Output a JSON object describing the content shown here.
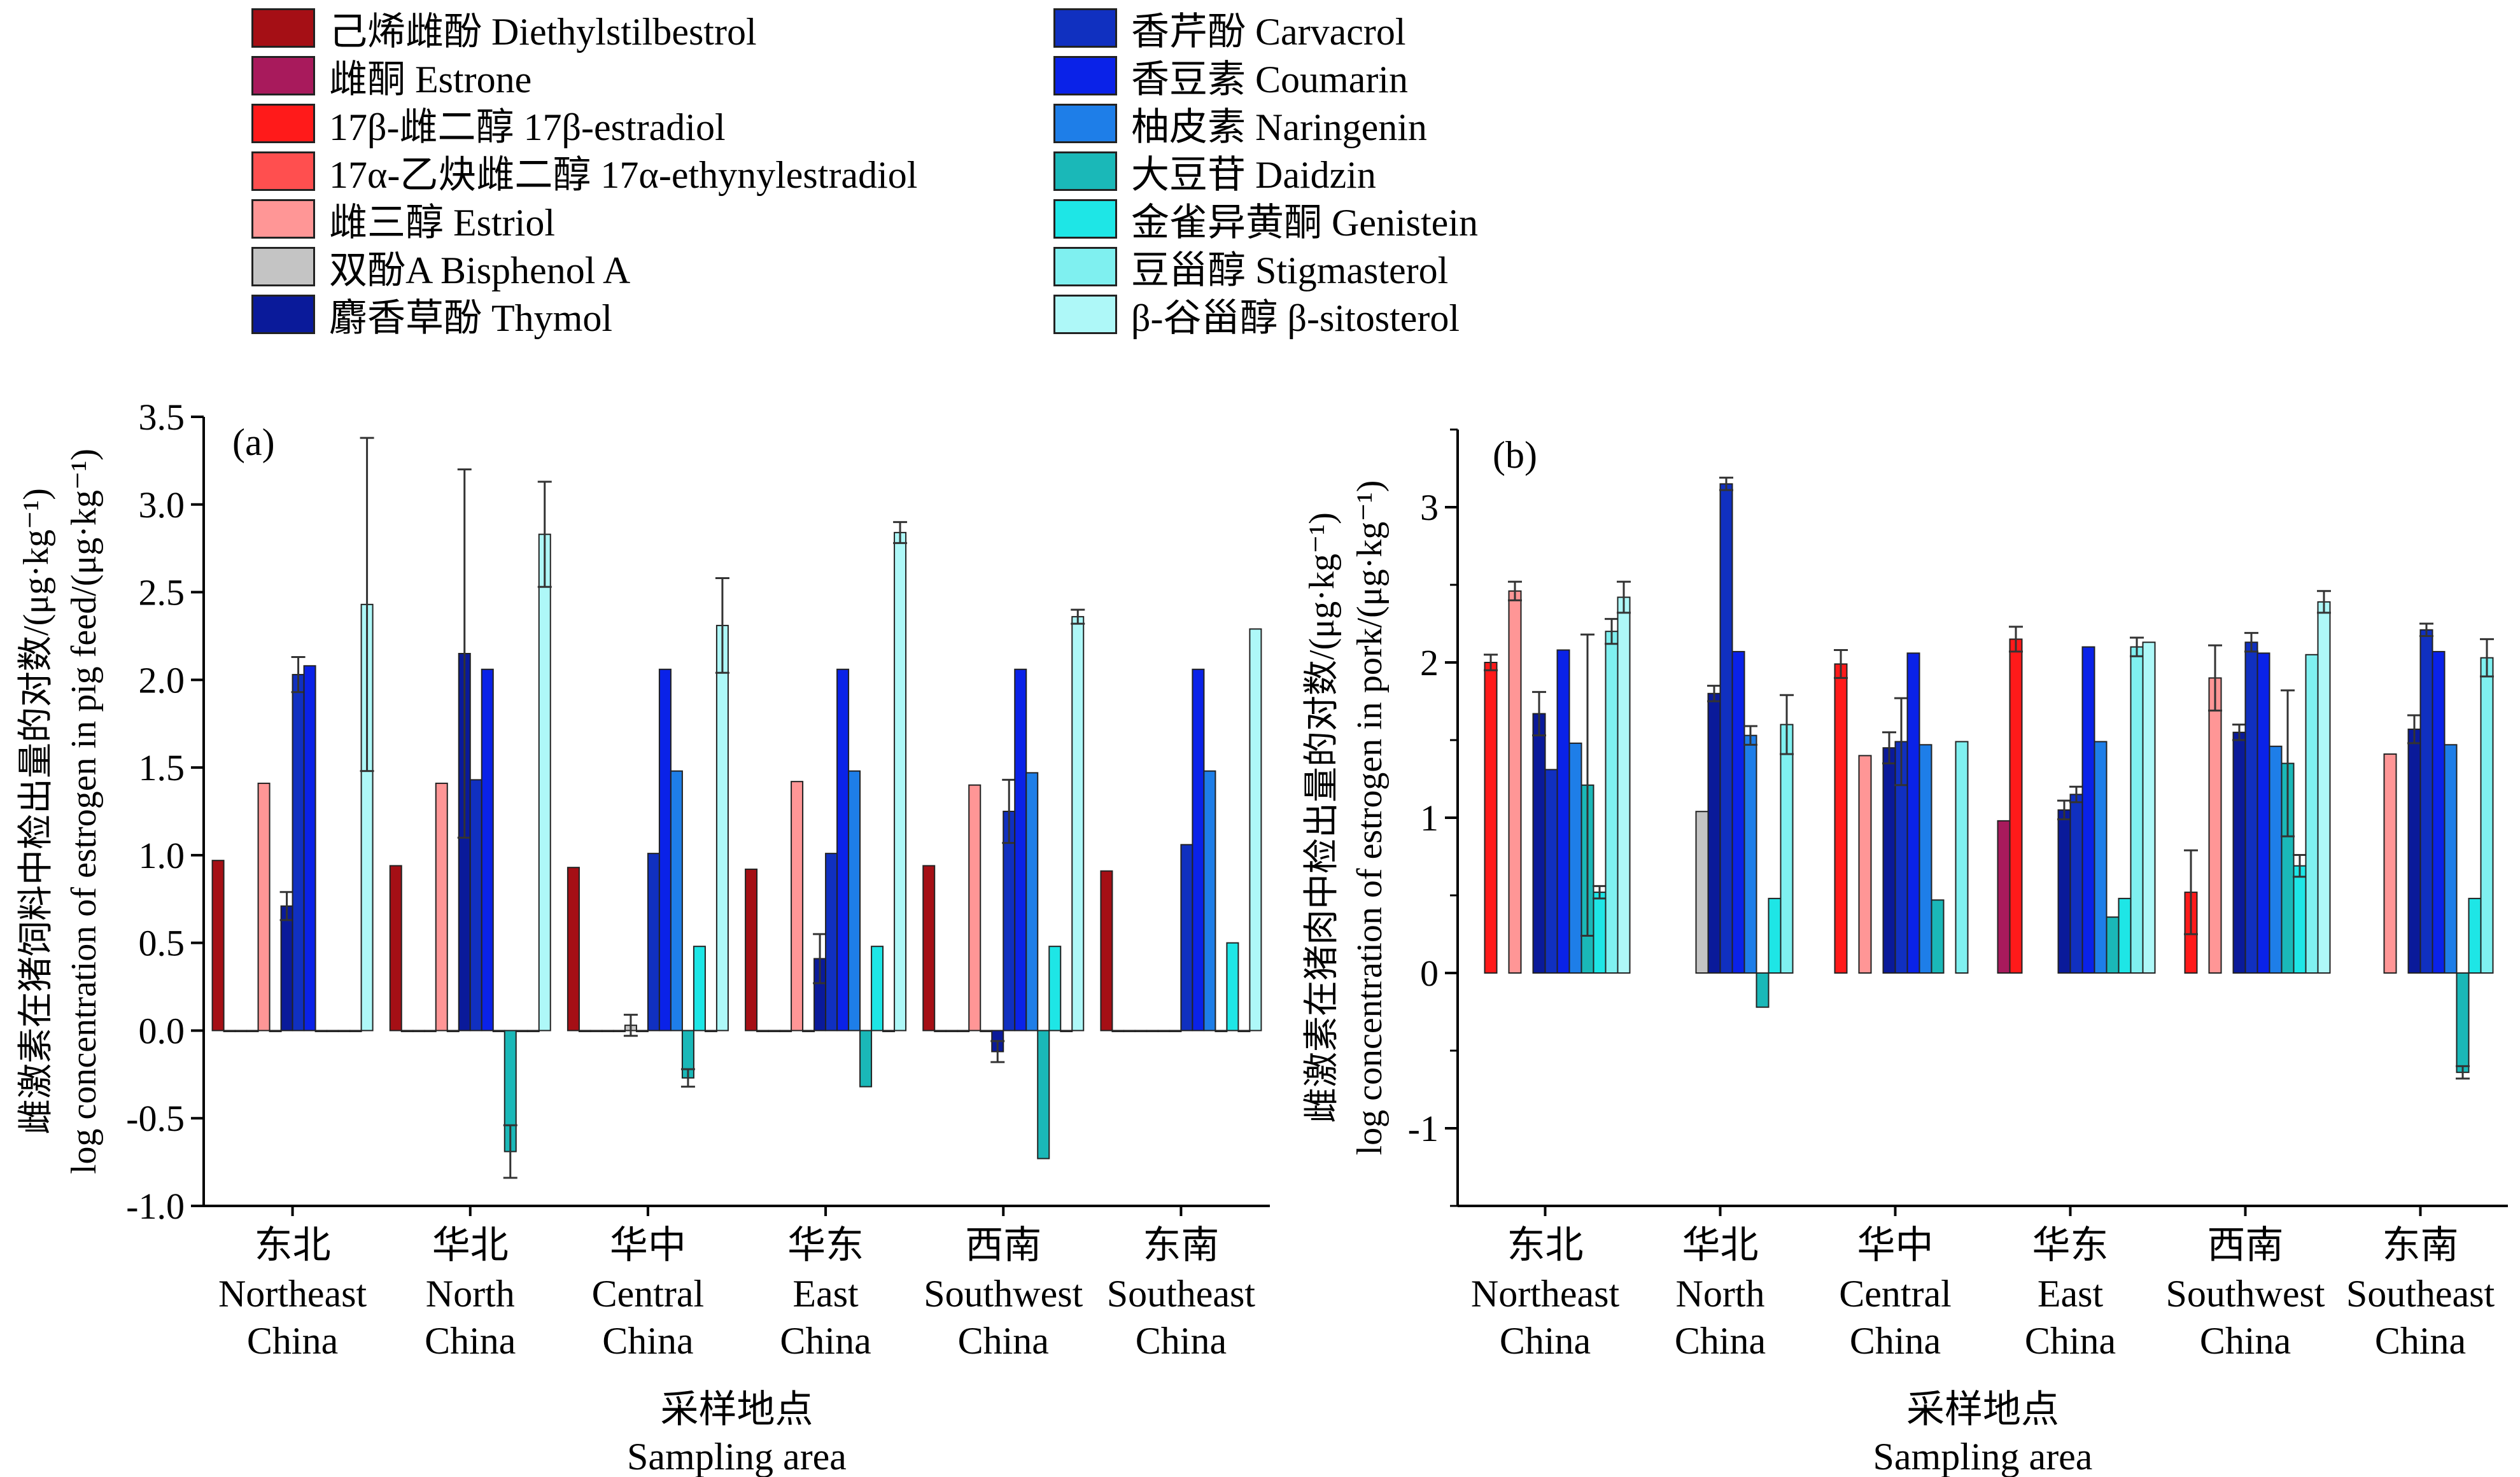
{
  "legend": [
    {
      "label": "己烯雌酚 Diethylstilbestrol",
      "color": "#a50f15"
    },
    {
      "label": "雌酮 Estrone",
      "color": "#a81a5c"
    },
    {
      "label": "17β-雌二醇 17β-estradiol",
      "color": "#ff1a1a"
    },
    {
      "label": "17α-乙炔雌二醇 17α-ethynylestradiol",
      "color": "#ff4f4f"
    },
    {
      "label": "雌三醇 Estriol",
      "color": "#ff9696"
    },
    {
      "label": "双酚A Bisphenol A",
      "color": "#c4c4c4"
    },
    {
      "label": "麝香草酚 Thymol",
      "color": "#0a1a9a"
    },
    {
      "label": "香芹酚 Carvacrol",
      "color": "#1030c0"
    },
    {
      "label": "香豆素 Coumarin",
      "color": "#0a22e8"
    },
    {
      "label": "柚皮素 Naringenin",
      "color": "#1e7ee8"
    },
    {
      "label": "大豆苷 Daidzin",
      "color": "#1ab8b8"
    },
    {
      "label": "金雀异黄酮 Genistein",
      "color": "#1ee6e6"
    },
    {
      "label": "豆甾醇 Stigmasterol",
      "color": "#7ff0f0"
    },
    {
      "label": "β-谷甾醇 β-sitosterol",
      "color": "#aef8f8"
    }
  ],
  "chart_data": [
    {
      "type": "bar",
      "panel_label": "(a)",
      "ylabel_cn": "雌激素在猪饲料中检出量的对数/(μg·kg⁻¹)",
      "ylabel_en": "log concentration of estrogen in pig feed/(μg·kg⁻¹)",
      "xlabel_cn": "采样地点",
      "xlabel_en": "Sampling area",
      "ylim": [
        -1.0,
        3.5
      ],
      "yticks": [
        "-1.0",
        "-0.5",
        "0.0",
        "0.5",
        "1.0",
        "1.5",
        "2.0",
        "2.5",
        "3.0",
        "3.5"
      ],
      "ytick_values": [
        -1.0,
        -0.5,
        0.0,
        0.5,
        1.0,
        1.5,
        2.0,
        2.5,
        3.0,
        3.5
      ],
      "categories": [
        {
          "cn": "东北",
          "en1": "Northeast",
          "en2": "China"
        },
        {
          "cn": "华北",
          "en1": "North",
          "en2": "China"
        },
        {
          "cn": "华中",
          "en1": "Central",
          "en2": "China"
        },
        {
          "cn": "华东",
          "en1": "East",
          "en2": "China"
        },
        {
          "cn": "西南",
          "en1": "Southwest",
          "en2": "China"
        },
        {
          "cn": "东南",
          "en1": "Southeast",
          "en2": "China"
        }
      ],
      "values": [
        [
          0.97,
          0,
          0,
          0,
          1.41,
          0,
          0.71,
          2.03,
          2.08,
          0,
          0,
          0,
          0,
          2.43
        ],
        [
          0.94,
          0,
          0,
          0,
          1.41,
          0,
          2.15,
          1.43,
          2.06,
          0,
          -0.69,
          0,
          0,
          2.83
        ],
        [
          0.93,
          0,
          0,
          0,
          0,
          0.03,
          0,
          1.01,
          2.06,
          1.48,
          -0.27,
          0.48,
          0,
          2.31
        ],
        [
          0.92,
          0,
          0,
          0,
          1.42,
          0,
          0.41,
          1.01,
          2.06,
          1.48,
          -0.32,
          0.48,
          0,
          2.84
        ],
        [
          0.94,
          0,
          0,
          0,
          1.4,
          0,
          -0.12,
          1.25,
          2.06,
          1.47,
          -0.73,
          0.48,
          0,
          2.36
        ],
        [
          0.91,
          0,
          0,
          0,
          0,
          0,
          0,
          1.06,
          2.06,
          1.48,
          0,
          0.5,
          0,
          2.29
        ]
      ],
      "errors": [
        [
          0,
          0,
          0,
          0,
          0,
          0,
          0.08,
          0.1,
          0,
          0,
          0,
          0,
          0,
          0.95
        ],
        [
          0,
          0,
          0,
          0,
          0,
          0,
          1.05,
          0,
          0,
          0,
          0.15,
          0,
          0,
          0.3
        ],
        [
          0,
          0,
          0,
          0,
          0,
          0.06,
          0,
          0,
          0,
          0,
          0.05,
          0,
          0,
          0.27
        ],
        [
          0,
          0,
          0,
          0,
          0,
          0,
          0.14,
          0,
          0,
          0,
          0,
          0,
          0,
          0.06
        ],
        [
          0,
          0,
          0,
          0,
          0,
          0,
          0.06,
          0.18,
          0,
          0,
          0,
          0,
          0,
          0.04
        ],
        [
          0,
          0,
          0,
          0,
          0,
          0,
          0,
          0,
          0,
          0,
          0,
          0,
          0,
          0
        ]
      ]
    },
    {
      "type": "bar",
      "panel_label": "(b)",
      "ylabel_cn": "雌激素在猪肉中检出量的对数/(μg·kg⁻¹)",
      "ylabel_en": "log concentration of estrogen in pork/(μg·kg⁻¹)",
      "xlabel_cn": "采样地点",
      "xlabel_en": "Sampling area",
      "ylim": [
        -1.5,
        3.5
      ],
      "yticks": [
        "-1",
        "0",
        "1",
        "2",
        "3"
      ],
      "ytick_values": [
        -1,
        0,
        1,
        2,
        3
      ],
      "categories": [
        {
          "cn": "东北",
          "en1": "Northeast",
          "en2": "China"
        },
        {
          "cn": "华北",
          "en1": "North",
          "en2": "China"
        },
        {
          "cn": "华中",
          "en1": "Central",
          "en2": "China"
        },
        {
          "cn": "华东",
          "en1": "East",
          "en2": "China"
        },
        {
          "cn": "西南",
          "en1": "Southwest",
          "en2": "China"
        },
        {
          "cn": "东南",
          "en1": "Southeast",
          "en2": "China"
        }
      ],
      "values": [
        [
          null,
          null,
          2.0,
          null,
          2.46,
          null,
          1.67,
          1.31,
          2.08,
          1.48,
          1.21,
          0.52,
          2.2,
          2.42
        ],
        [
          null,
          null,
          null,
          null,
          null,
          1.04,
          1.8,
          3.15,
          2.07,
          1.53,
          -0.22,
          0.48,
          1.6,
          null
        ],
        [
          null,
          null,
          1.99,
          null,
          1.4,
          null,
          1.45,
          1.49,
          2.06,
          1.47,
          0.47,
          null,
          1.49,
          null
        ],
        [
          null,
          0.98,
          2.15,
          null,
          null,
          null,
          1.05,
          1.15,
          2.1,
          1.49,
          0.36,
          0.48,
          2.1,
          2.13
        ],
        [
          null,
          null,
          0.52,
          null,
          1.9,
          null,
          1.55,
          2.13,
          2.06,
          1.46,
          1.35,
          0.69,
          2.05,
          2.39
        ],
        [
          null,
          null,
          null,
          null,
          1.41,
          null,
          1.57,
          2.21,
          2.07,
          1.47,
          -0.64,
          0.48,
          2.03,
          null
        ]
      ],
      "errors": [
        [
          0,
          0,
          0.05,
          0,
          0.06,
          0,
          0.14,
          0,
          0,
          0,
          0.97,
          0.04,
          0.08,
          0.1
        ],
        [
          0,
          0,
          0,
          0,
          0,
          0,
          0.05,
          0.04,
          0,
          0.06,
          0,
          0,
          0.19,
          0
        ],
        [
          0,
          0,
          0.09,
          0,
          0,
          0,
          0.1,
          0.28,
          0,
          0,
          0,
          0,
          0,
          0
        ],
        [
          0,
          0,
          0.08,
          0,
          0,
          0,
          0.06,
          0.05,
          0,
          0,
          0,
          0,
          0.06,
          0
        ],
        [
          0,
          0,
          0.27,
          0,
          0.21,
          0,
          0.05,
          0.06,
          0,
          0,
          0.47,
          0.07,
          0,
          0.07
        ],
        [
          0,
          0,
          0,
          0,
          0,
          0,
          0.09,
          0.04,
          0,
          0,
          0.04,
          0,
          0.12,
          0
        ]
      ]
    }
  ]
}
